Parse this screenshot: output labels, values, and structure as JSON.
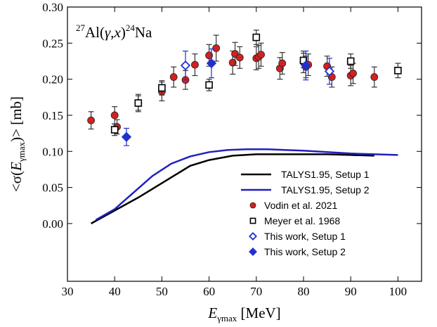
{
  "chart_data": {
    "type": "scatter",
    "title": "",
    "annotation": {
      "mass_target": "27",
      "target": "Al(",
      "gamma": "γ",
      "comma": ",",
      "x": "x",
      "close": ")",
      "mass_product": "24",
      "product": "Na"
    },
    "xlabel": {
      "main": "E",
      "sub": "γmax",
      "unit": " [MeV]"
    },
    "ylabel": {
      "pre": "<σ(",
      "main": "E",
      "sub": "γmax",
      "post": ")> [mb]"
    },
    "xlim": [
      30,
      105
    ],
    "ylim": [
      -0.08,
      0.3
    ],
    "x_ticks": [
      "30",
      "40",
      "50",
      "60",
      "70",
      "80",
      "90",
      "100"
    ],
    "x_tick_values": [
      30,
      40,
      50,
      60,
      70,
      80,
      90,
      100
    ],
    "y_ticks": [
      "0.00",
      "0.05",
      "0.10",
      "0.15",
      "0.20",
      "0.25",
      "0.30"
    ],
    "y_tick_values": [
      0.0,
      0.05,
      0.1,
      0.15,
      0.2,
      0.25,
      0.3
    ],
    "legend_position": "bottom-right",
    "series": [
      {
        "name": "TALYS1.95, Setup 1",
        "kind": "line",
        "color": "#000000",
        "x": [
          35,
          40,
          45,
          50,
          53,
          56,
          60,
          65,
          70,
          75,
          80,
          85,
          90,
          95
        ],
        "y": [
          0.0,
          0.018,
          0.036,
          0.056,
          0.068,
          0.08,
          0.088,
          0.094,
          0.096,
          0.096,
          0.096,
          0.096,
          0.095,
          0.094
        ]
      },
      {
        "name": "TALYS1.95, Setup 2",
        "kind": "line",
        "color": "#2020c0",
        "x": [
          36,
          40,
          44,
          48,
          52,
          56,
          60,
          64,
          68,
          72,
          76,
          80,
          85,
          90,
          95,
          100
        ],
        "y": [
          0.005,
          0.02,
          0.043,
          0.066,
          0.083,
          0.093,
          0.099,
          0.102,
          0.103,
          0.103,
          0.102,
          0.101,
          0.099,
          0.097,
          0.096,
          0.095
        ]
      },
      {
        "name": "Vodin et al. 2021",
        "kind": "points",
        "marker": "circle",
        "color": "#d42020",
        "x": [
          35,
          40,
          40.5,
          45,
          50,
          52.5,
          55,
          57,
          60,
          61.5,
          65,
          65.5,
          66.5,
          70,
          70.5,
          71,
          75,
          75.5,
          80,
          80.5,
          81,
          85,
          86,
          90,
          90.5,
          95
        ],
        "y": [
          0.143,
          0.15,
          0.134,
          0.167,
          0.183,
          0.203,
          0.199,
          0.22,
          0.233,
          0.243,
          0.223,
          0.235,
          0.23,
          0.229,
          0.231,
          0.234,
          0.215,
          0.222,
          0.224,
          0.217,
          0.22,
          0.218,
          0.203,
          0.205,
          0.208,
          0.203
        ],
        "err": [
          0.012,
          0.012,
          0.01,
          0.012,
          0.013,
          0.014,
          0.013,
          0.015,
          0.015,
          0.018,
          0.016,
          0.016,
          0.015,
          0.016,
          0.016,
          0.016,
          0.015,
          0.015,
          0.015,
          0.015,
          0.015,
          0.014,
          0.014,
          0.014,
          0.014,
          0.014
        ]
      },
      {
        "name": "Meyer et al. 1968",
        "kind": "points",
        "marker": "square-open",
        "color": "#000000",
        "x": [
          40,
          45,
          50,
          60,
          70,
          80,
          90,
          100
        ],
        "y": [
          0.13,
          0.167,
          0.188,
          0.192,
          0.258,
          0.226,
          0.225,
          0.212
        ],
        "err": [
          0.008,
          0.01,
          0.01,
          0.008,
          0.01,
          0.01,
          0.01,
          0.01
        ]
      },
      {
        "name": "This work, Setup 1",
        "kind": "points",
        "marker": "diamond-open",
        "color": "#2030d0",
        "x": [
          55,
          85.5
        ],
        "y": [
          0.219,
          0.211
        ],
        "err": [
          0.02,
          0.018
        ]
      },
      {
        "name": "This work, Setup 2",
        "kind": "points",
        "marker": "diamond-filled",
        "color": "#2030d0",
        "x": [
          42.5,
          60.5,
          80.5
        ],
        "y": [
          0.12,
          0.222,
          0.219
        ],
        "err": [
          0.012,
          0.02,
          0.02
        ]
      }
    ]
  }
}
